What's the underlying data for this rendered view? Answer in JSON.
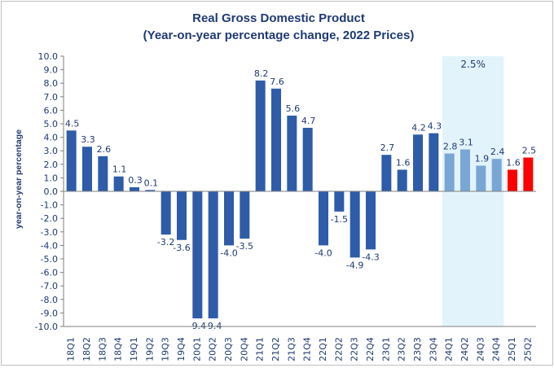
{
  "chart_data": {
    "type": "bar",
    "title": [
      "Real Gross Domestic Product",
      "(Year-on-year percentage change, 2022 Prices)"
    ],
    "xlabel": "",
    "ylabel": "year-on-year percentage",
    "ylim": [
      -10.0,
      10.0
    ],
    "ytick_step": 1.0,
    "grid": false,
    "categories": [
      "18Q1",
      "18Q2",
      "18Q3",
      "18Q4",
      "19Q1",
      "19Q2",
      "19Q3",
      "19Q4",
      "20Q1",
      "20Q2",
      "20Q3",
      "20Q4",
      "21Q1",
      "21Q2",
      "21Q3",
      "21Q4",
      "22Q1",
      "22Q2",
      "22Q3",
      "22Q4",
      "23Q1",
      "23Q2",
      "23Q3",
      "23Q4",
      "24Q1",
      "24Q2",
      "24Q3",
      "24Q4",
      "25Q1",
      "25Q2"
    ],
    "values": [
      4.5,
      3.3,
      2.6,
      1.1,
      0.3,
      0.1,
      -3.2,
      -3.6,
      -9.4,
      -9.4,
      -4.0,
      -3.5,
      8.2,
      7.6,
      5.6,
      4.7,
      -4.0,
      -1.5,
      -4.9,
      -4.3,
      2.7,
      1.6,
      4.2,
      4.3,
      2.8,
      3.1,
      1.9,
      2.4,
      1.6,
      2.5
    ],
    "data_labels": [
      "4.5",
      "3.3",
      "2.6",
      "1.1",
      "0.3",
      "0.1",
      "-3.2",
      "-3.6",
      "-9.4",
      "-9.4",
      "-4.0",
      "-3.5",
      "8.2",
      "7.6",
      "5.6",
      "4.7",
      "-4.0",
      "-1.5",
      "-4.9",
      "-4.3",
      "2.7",
      "1.6",
      "4.2",
      "4.3",
      "2.8",
      "3.1",
      "1.9",
      "2.4",
      "1.6",
      "2.5"
    ],
    "bar_groups": [
      "historical",
      "historical",
      "historical",
      "historical",
      "historical",
      "historical",
      "historical",
      "historical",
      "historical",
      "historical",
      "historical",
      "historical",
      "historical",
      "historical",
      "historical",
      "historical",
      "historical",
      "historical",
      "historical",
      "historical",
      "historical",
      "historical",
      "historical",
      "historical",
      "2024",
      "2024",
      "2024",
      "2024",
      "2025",
      "2025"
    ],
    "highlight_region": {
      "from": "24Q1",
      "to": "24Q4",
      "label": "2.5%"
    },
    "colors": {
      "historical": "#2e5ca8",
      "2024": "#7aa6d6",
      "2025": "#ff0000",
      "highlight": "#e3f3fb",
      "text": "#1f3a73",
      "axis": "#7f7f7f"
    }
  }
}
